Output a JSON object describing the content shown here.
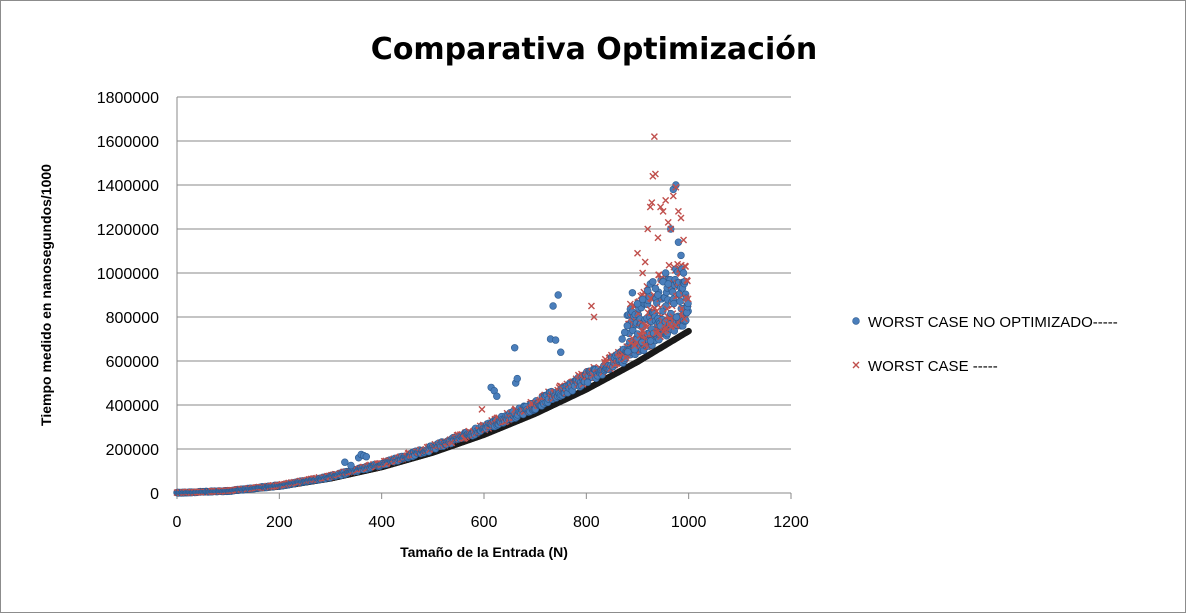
{
  "chart_data": {
    "type": "scatter",
    "title": "Comparativa Optimización",
    "xlabel": "Tamaño  de la Entrada (N)",
    "ylabel": "Tiempo medido en nanosegundos/1000",
    "xlim": [
      0,
      1200
    ],
    "ylim": [
      0,
      1800000
    ],
    "x_ticks": [
      "0",
      "200",
      "400",
      "600",
      "800",
      "1000",
      "1200"
    ],
    "y_ticks": [
      "0",
      "200000",
      "400000",
      "600000",
      "800000",
      "1000000",
      "1200000",
      "1400000",
      "1600000",
      "1800000"
    ],
    "grid": "horizontal",
    "legend_position": "right",
    "trend": {
      "x": [
        0,
        100,
        200,
        300,
        400,
        500,
        600,
        700,
        800,
        900,
        1000
      ],
      "y": [
        0,
        8000,
        32000,
        72000,
        128000,
        200000,
        288000,
        392000,
        512000,
        648000,
        800000
      ]
    },
    "series": [
      {
        "name": "WORST CASE NO OPTIMIZADO-----",
        "marker": "circle",
        "color": "#4a7ebb",
        "outliers": {
          "x": [
            328,
            340,
            355,
            360,
            365,
            370,
            614,
            620,
            625,
            660,
            662,
            665,
            730,
            735,
            740,
            745,
            750,
            870,
            875,
            880,
            890,
            900,
            910,
            920,
            925,
            930,
            935,
            940,
            950,
            955,
            960,
            965,
            970,
            975,
            980,
            985,
            990
          ],
          "y": [
            140000,
            125000,
            160000,
            175000,
            170000,
            165000,
            480000,
            465000,
            440000,
            660000,
            500000,
            520000,
            700000,
            850000,
            695000,
            900000,
            640000,
            700000,
            730000,
            760000,
            910000,
            860000,
            880000,
            920000,
            950000,
            960000,
            930000,
            900000,
            960000,
            1000000,
            950000,
            1200000,
            1380000,
            1400000,
            1140000,
            1080000,
            1000000
          ]
        }
      },
      {
        "name": "WORST CASE -----",
        "marker": "x",
        "color": "#c0504d",
        "outliers": {
          "x": [
            596,
            810,
            815,
            900,
            910,
            915,
            920,
            925,
            928,
            930,
            933,
            935,
            940,
            945,
            950,
            955,
            960,
            965,
            970,
            975,
            980,
            985,
            990
          ],
          "y": [
            380000,
            850000,
            800000,
            1090000,
            1000000,
            1050000,
            1200000,
            1300000,
            1320000,
            1440000,
            1620000,
            1450000,
            1160000,
            1300000,
            1280000,
            1330000,
            1230000,
            1200000,
            1350000,
            1390000,
            1280000,
            1250000,
            1150000
          ]
        }
      }
    ]
  }
}
